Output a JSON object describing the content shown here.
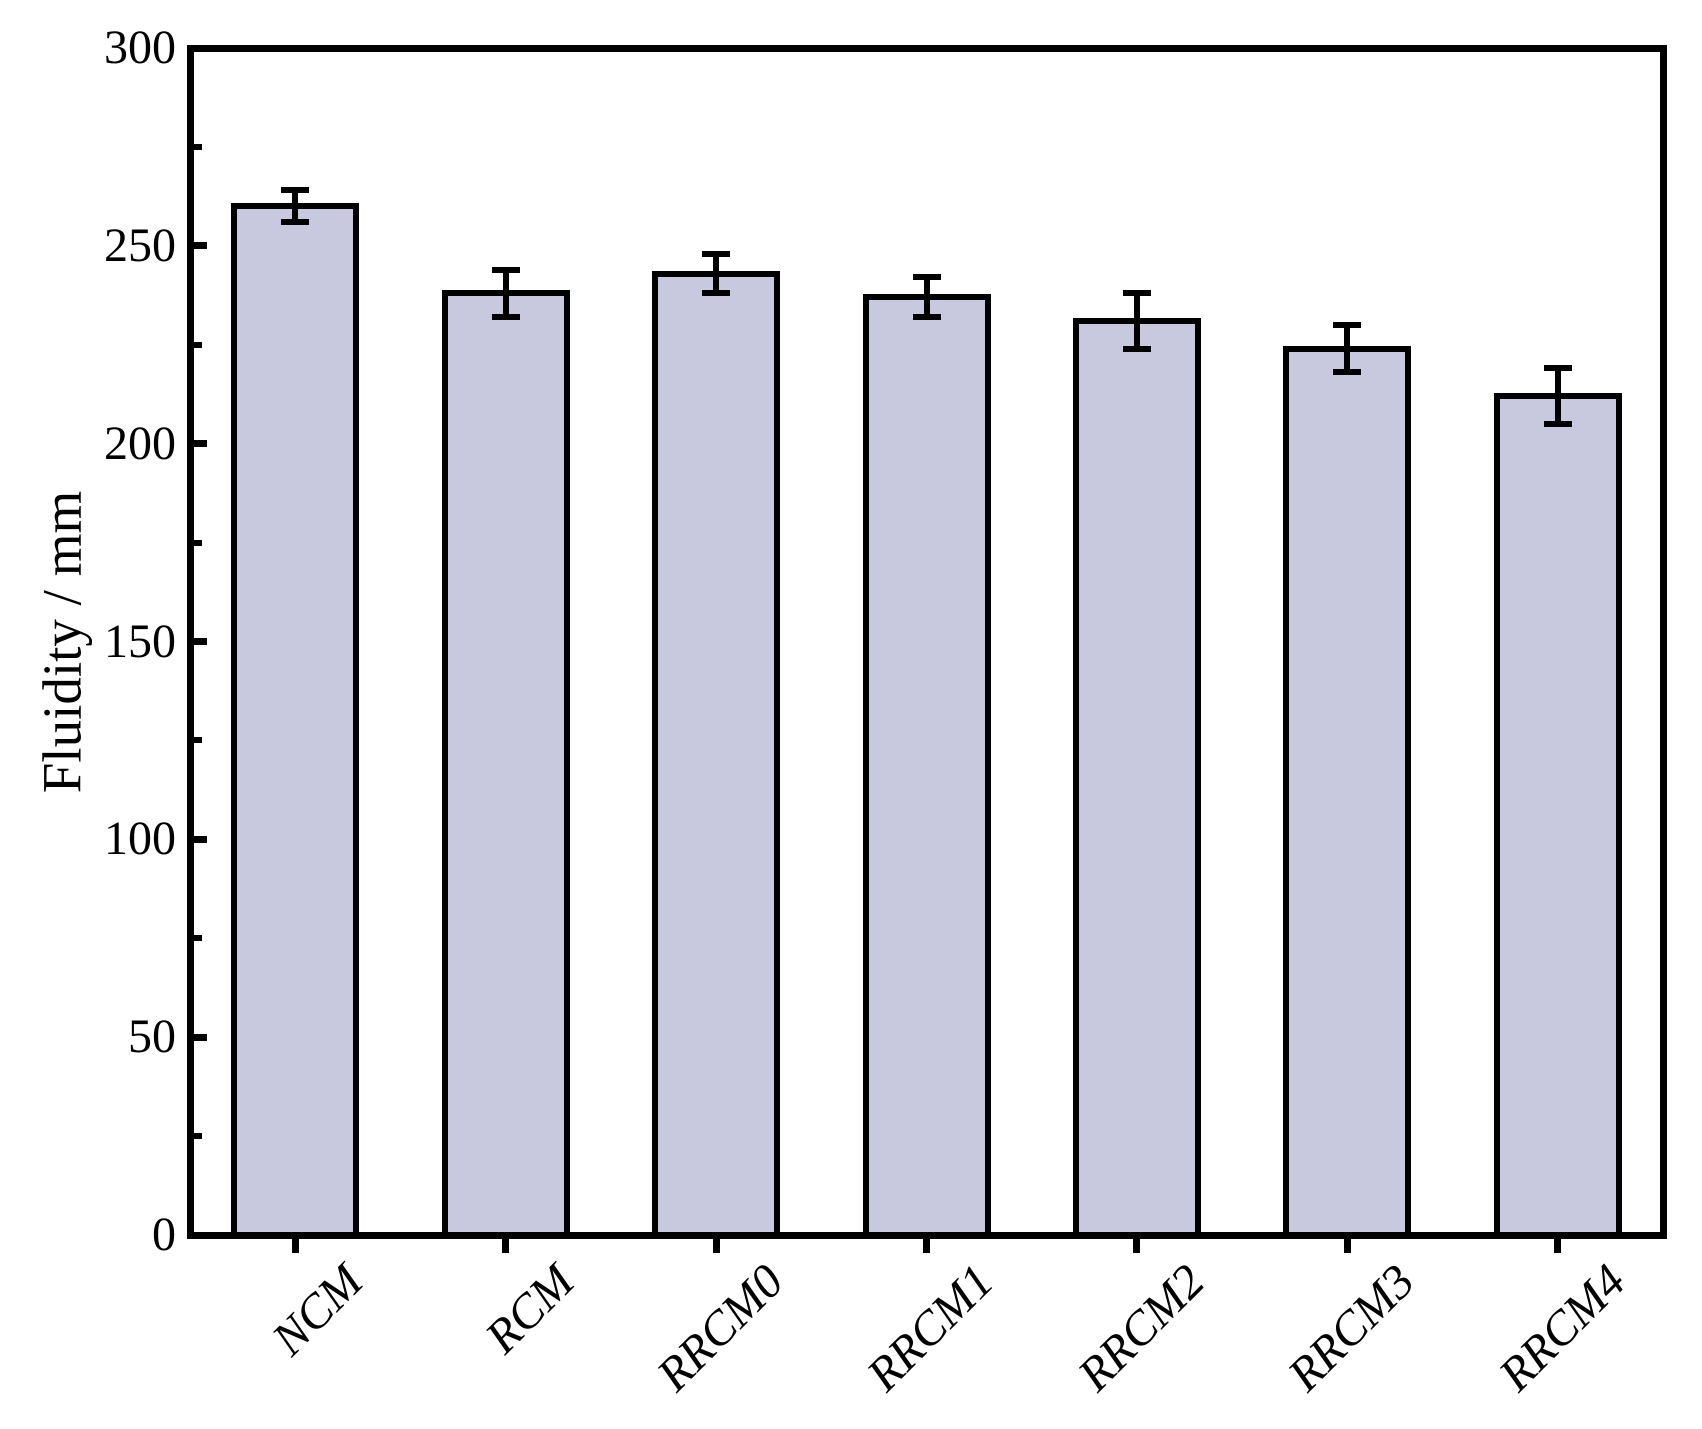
{
  "chart_data": {
    "type": "bar",
    "title": "",
    "xlabel": "",
    "ylabel": "Fluidity / mm",
    "categories": [
      "NCM",
      "RCM",
      "RRCM0",
      "RRCM1",
      "RRCM2",
      "RRCM3",
      "RRCM4"
    ],
    "values": [
      260,
      238,
      243,
      237,
      231,
      224,
      212
    ],
    "errors": [
      4,
      6,
      5,
      5,
      7,
      6,
      7
    ],
    "ylim": [
      0,
      300
    ],
    "y_major_ticks": [
      0,
      50,
      100,
      150,
      200,
      250,
      300
    ],
    "y_minor_ticks": [
      25,
      75,
      125,
      175,
      225,
      275
    ],
    "grid": false,
    "legend": "none",
    "colors": {
      "bar_fill": "#C8C8DE",
      "bar_border": "#000000",
      "axis": "#000000",
      "background": "#FFFFFF"
    }
  }
}
